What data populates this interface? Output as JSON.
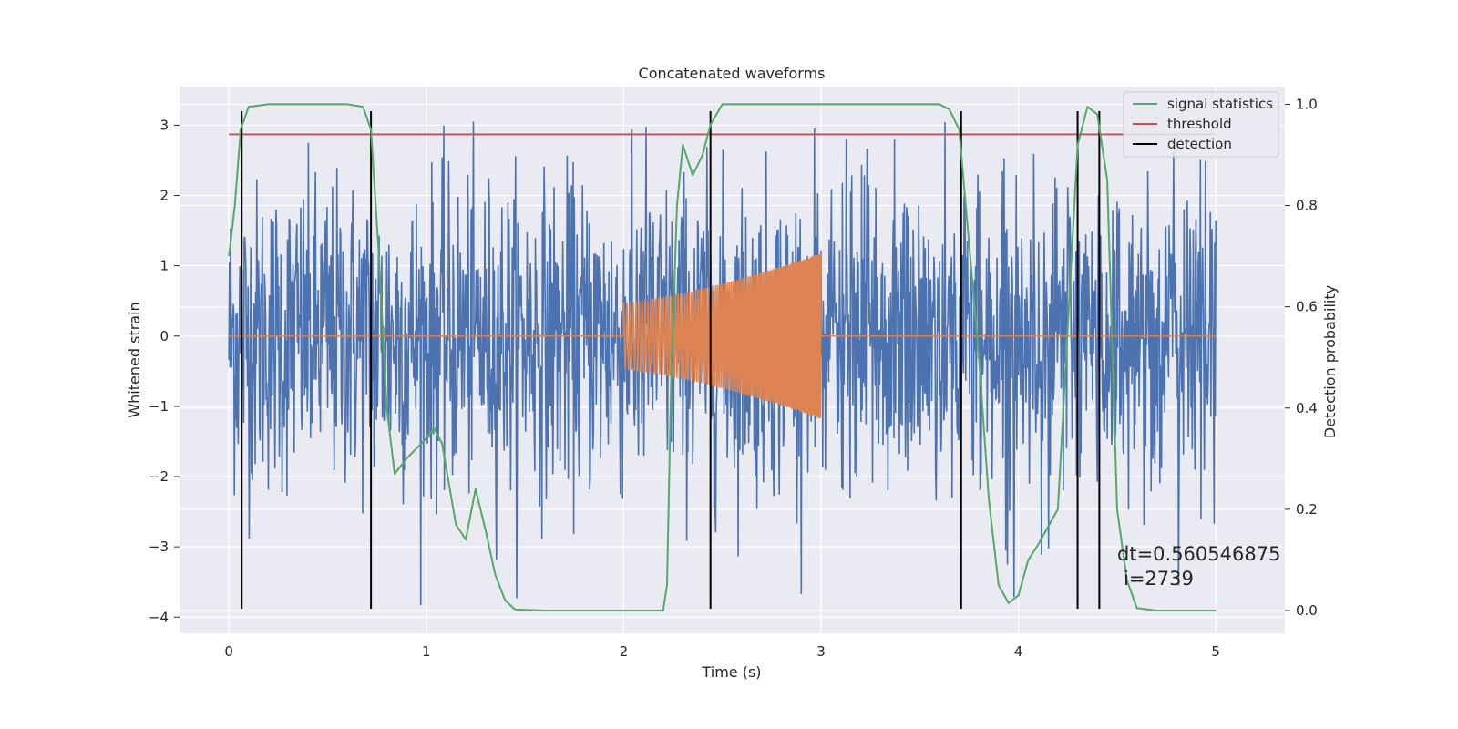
{
  "chart_data": {
    "type": "line",
    "title": "Concatenated waveforms",
    "xlabel": "Time (s)",
    "ylabel": "Whitened strain",
    "y2label": "Detection probability",
    "xlim": [
      -0.25,
      5.35
    ],
    "ylim": [
      -4.23,
      3.55
    ],
    "y2lim": [
      -0.045,
      1.035
    ],
    "xticks": [
      0,
      1,
      2,
      3,
      4,
      5
    ],
    "yticks": [
      -4,
      -3,
      -2,
      -1,
      0,
      1,
      2,
      3
    ],
    "y2ticks": [
      0.0,
      0.2,
      0.4,
      0.6,
      0.8,
      1.0
    ],
    "grid": true,
    "legend_position": "top-right",
    "colors": {
      "background": "#eaeaf2",
      "strain": "#4c72b0",
      "injection": "#dd8452",
      "signal_statistics": "#55a868",
      "threshold": "#c44e52",
      "detection": "#000000"
    },
    "series": [
      {
        "name": "",
        "role": "whitened_strain",
        "x_range": [
          0,
          5
        ],
        "typical_amplitude": 1.1,
        "max": 3.2,
        "min": -3.9
      },
      {
        "name": "",
        "role": "injected_chirp",
        "x_range": [
          2,
          3
        ],
        "envelope_start": 0.48,
        "envelope_end": 1.18
      },
      {
        "name": "signal statistics",
        "axis": "right",
        "points": [
          [
            0.0,
            0.7
          ],
          [
            0.03,
            0.8
          ],
          [
            0.06,
            0.95
          ],
          [
            0.1,
            0.995
          ],
          [
            0.2,
            1.0
          ],
          [
            0.6,
            1.0
          ],
          [
            0.68,
            0.995
          ],
          [
            0.72,
            0.95
          ],
          [
            0.76,
            0.7
          ],
          [
            0.8,
            0.4
          ],
          [
            0.84,
            0.27
          ],
          [
            0.9,
            0.3
          ],
          [
            1.0,
            0.34
          ],
          [
            1.04,
            0.36
          ],
          [
            1.08,
            0.33
          ],
          [
            1.15,
            0.17
          ],
          [
            1.2,
            0.14
          ],
          [
            1.25,
            0.24
          ],
          [
            1.3,
            0.16
          ],
          [
            1.35,
            0.07
          ],
          [
            1.4,
            0.02
          ],
          [
            1.45,
            0.002
          ],
          [
            1.6,
            0.0
          ],
          [
            2.2,
            0.0
          ],
          [
            2.22,
            0.05
          ],
          [
            2.24,
            0.45
          ],
          [
            2.27,
            0.8
          ],
          [
            2.3,
            0.92
          ],
          [
            2.35,
            0.86
          ],
          [
            2.4,
            0.9
          ],
          [
            2.44,
            0.96
          ],
          [
            2.5,
            1.0
          ],
          [
            3.6,
            1.0
          ],
          [
            3.65,
            0.99
          ],
          [
            3.7,
            0.95
          ],
          [
            3.8,
            0.5
          ],
          [
            3.85,
            0.22
          ],
          [
            3.9,
            0.05
          ],
          [
            3.95,
            0.015
          ],
          [
            4.0,
            0.03
          ],
          [
            4.05,
            0.1
          ],
          [
            4.1,
            0.13
          ],
          [
            4.2,
            0.2
          ],
          [
            4.3,
            0.92
          ],
          [
            4.35,
            0.995
          ],
          [
            4.4,
            0.98
          ],
          [
            4.45,
            0.85
          ],
          [
            4.5,
            0.2
          ],
          [
            4.55,
            0.06
          ],
          [
            4.6,
            0.005
          ],
          [
            4.7,
            0.0
          ],
          [
            5.0,
            0.0
          ]
        ]
      },
      {
        "name": "threshold",
        "axis": "left",
        "x_range": [
          0,
          5
        ],
        "value": 2.87
      },
      {
        "name": "detection",
        "axis": "left",
        "x": [
          0.065,
          0.72,
          2.44,
          3.71,
          4.3,
          4.41
        ],
        "y_range": [
          -3.88,
          3.2
        ]
      }
    ],
    "annotation": {
      "line1": "dt=0.560546875",
      "line2": "i=2739",
      "x": 4.5,
      "y": -3.15
    }
  }
}
